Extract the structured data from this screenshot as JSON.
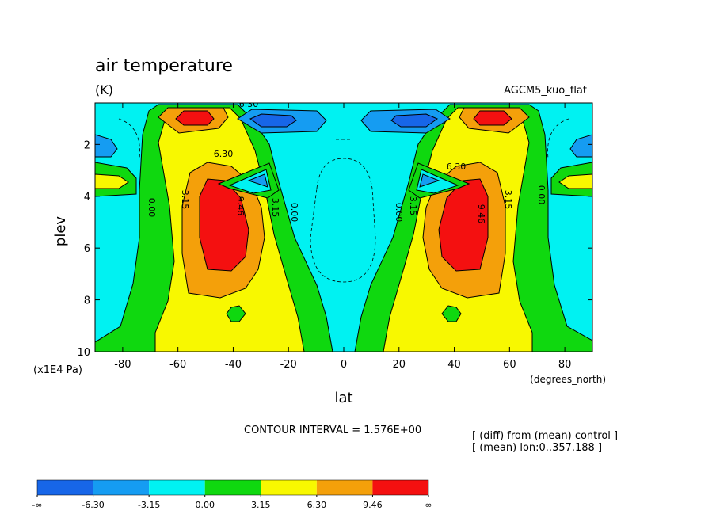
{
  "chart_data": {
    "type": "heatmap",
    "title": "air temperature",
    "units": "(K)",
    "run_label": "AGCM5_kuo_flat",
    "xlabel": "lat",
    "x_units": "(degrees_north)",
    "ylabel": "plev",
    "y_units": "(x1E4 Pa)",
    "x_ticks": [
      "-80",
      "-60",
      "-40",
      "-20",
      "0",
      "20",
      "40",
      "60",
      "80"
    ],
    "y_ticks": [
      "2",
      "4",
      "6",
      "8",
      "10"
    ],
    "xlim": [
      -90,
      90
    ],
    "ylim": [
      0.4,
      10
    ],
    "y_reversed": true,
    "contour_interval_text": "CONTOUR INTERVAL = 1.576E+00",
    "notes": [
      "[ (diff) from (mean) control ]",
      "[ (mean) lon:0..357.188 ]"
    ],
    "contour_labels": [
      "0.00",
      "3.15",
      "6.30",
      "9.46"
    ],
    "colorbar": {
      "labels": [
        "-∞",
        "-6.30",
        "-3.15",
        "0.00",
        "3.15",
        "6.30",
        "9.46",
        "∞"
      ],
      "colors": [
        "#1766e8",
        "#159cf2",
        "#00f2f2",
        "#0fd80f",
        "#f8f800",
        "#f4a00a",
        "#f41010"
      ]
    }
  }
}
